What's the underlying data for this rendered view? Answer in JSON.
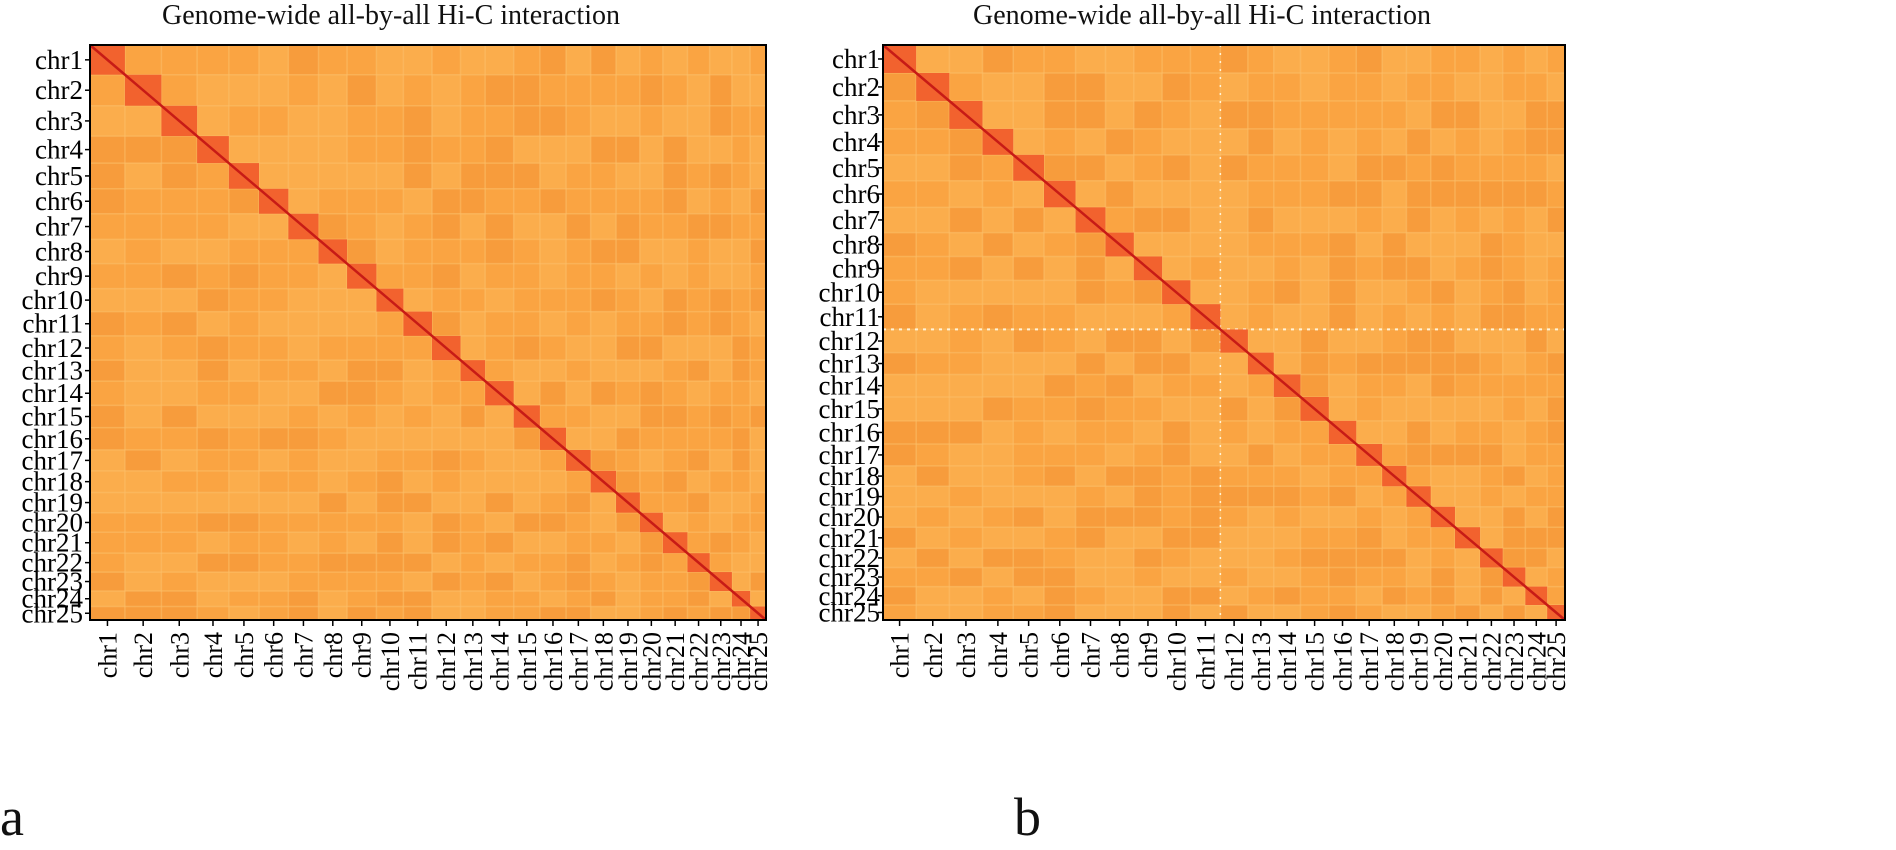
{
  "chart_data": [
    {
      "type": "heatmap",
      "panel": "a",
      "title": "Genome-wide all-by-all Hi-C interaction",
      "xlabel": "",
      "ylabel": "",
      "categories": [
        "chr1",
        "chr2",
        "chr3",
        "chr4",
        "chr5",
        "chr6",
        "chr7",
        "chr8",
        "chr9",
        "chr10",
        "chr11",
        "chr12",
        "chr13",
        "chr14",
        "chr15",
        "chr16",
        "chr17",
        "chr18",
        "chr19",
        "chr20",
        "chr21",
        "chr22",
        "chr23",
        "chr24",
        "chr25"
      ],
      "relative_sizes": [
        44,
        46,
        45,
        40,
        38,
        37,
        38,
        36,
        37,
        34,
        36,
        36,
        31,
        36,
        33,
        33,
        31,
        32,
        30,
        29,
        31,
        28,
        28,
        23,
        20
      ],
      "block_colors": {
        "background": "#f9a443",
        "diagonal_block": "#f2622e",
        "diagonal_line": "#c71b16"
      },
      "legend": "none",
      "grid": false
    },
    {
      "type": "heatmap",
      "panel": "b",
      "title": "Genome-wide all-by-all Hi-C interaction",
      "xlabel": "",
      "ylabel": "",
      "categories": [
        "chr1",
        "chr2",
        "chr3",
        "chr4",
        "chr5",
        "chr6",
        "chr7",
        "chr8",
        "chr9",
        "chr10",
        "chr11",
        "chr12",
        "chr13",
        "chr14",
        "chr15",
        "chr16",
        "chr17",
        "chr18",
        "chr19",
        "chr20",
        "chr21",
        "chr22",
        "chr23",
        "chr24",
        "chr25"
      ],
      "relative_sizes": [
        41,
        41,
        41,
        38,
        38,
        39,
        37,
        35,
        35,
        35,
        37,
        34,
        32,
        33,
        35,
        34,
        32,
        30,
        30,
        30,
        31,
        28,
        28,
        27,
        22
      ],
      "block_colors": {
        "background": "#f9a443",
        "diagonal_block": "#f2622e",
        "diagonal_line": "#c71b16"
      },
      "legend": "none",
      "grid": false
    }
  ],
  "panel_letters": [
    "a",
    "b"
  ]
}
